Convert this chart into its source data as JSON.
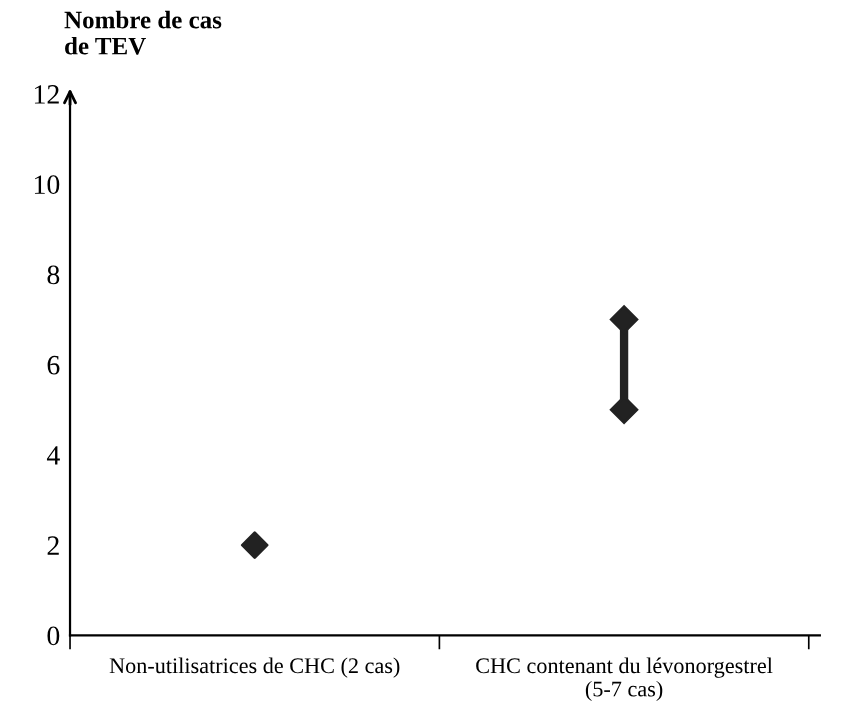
{
  "chart_data": {
    "type": "scatter",
    "ylabel": "Nombre de cas\nde TEV",
    "categories": [
      "Non-utilisatrices de CHC (2 cas)",
      "CHC contenant du lévonorgestrel\n(5-7 cas)"
    ],
    "series": [
      {
        "color": "#222222",
        "values": [
          2,
          null
        ]
      },
      {
        "type": "line",
        "color": "#222222",
        "x": [
          "CHC contenant du lévonorgestrel\n(5-7 cas)",
          "CHC contenant du lévonorgestrel\n(5-7 cas)"
        ],
        "values": [
          5,
          7
        ]
      }
    ],
    "marker": "diamond",
    "ylim": [
      0,
      12
    ],
    "yticks": [
      0,
      2,
      4,
      6,
      8,
      10,
      12
    ],
    "grid": false,
    "legend": false
  }
}
